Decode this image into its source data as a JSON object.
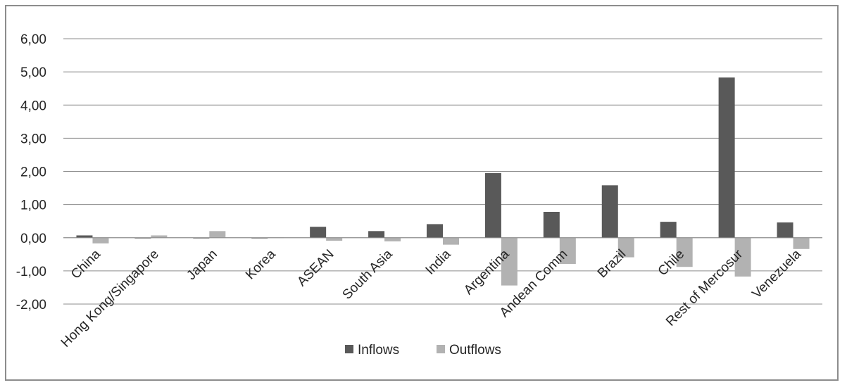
{
  "chart_data": {
    "type": "bar",
    "categories": [
      "China",
      "Hong Kong/Singapore",
      "Japan",
      "Korea",
      "ASEAN",
      "South Asia",
      "India",
      "Argentina",
      "Andean Comm",
      "Brazil",
      "Chile",
      "Rest of Mercosur",
      "Venezuela"
    ],
    "series": [
      {
        "name": "Inflows",
        "color": "#595959",
        "values": [
          0.07,
          -0.02,
          -0.02,
          -0.02,
          0.33,
          0.2,
          0.41,
          1.95,
          0.78,
          1.58,
          0.48,
          4.83,
          0.46
        ]
      },
      {
        "name": "Outflows",
        "color": "#b2b2b2",
        "values": [
          -0.17,
          0.07,
          0.2,
          0.01,
          -0.09,
          -0.11,
          -0.21,
          -1.44,
          -0.79,
          -0.59,
          -0.88,
          -1.17,
          -0.34
        ]
      }
    ],
    "ylim": [
      -2,
      6
    ],
    "yticks": [
      "-2,00",
      "-1,00",
      "0,00",
      "1,00",
      "2,00",
      "3,00",
      "4,00",
      "5,00",
      "6,00"
    ],
    "grid": true,
    "legend_position": "bottom",
    "title": "",
    "xlabel": "",
    "ylabel": ""
  }
}
